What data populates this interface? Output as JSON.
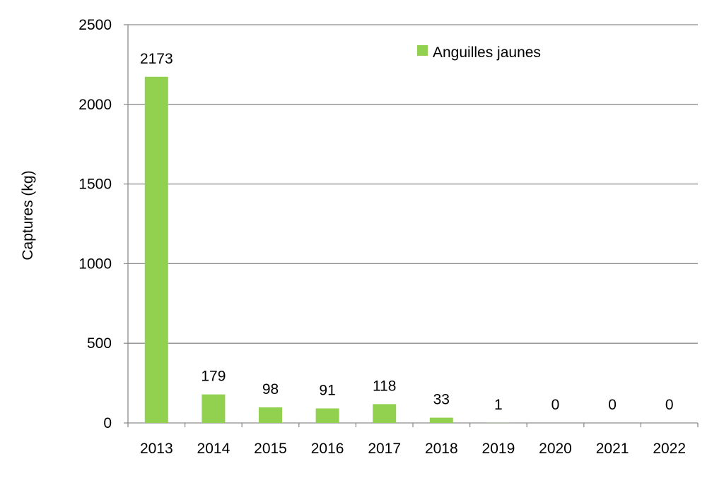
{
  "chart_data": {
    "type": "bar",
    "categories": [
      "2013",
      "2014",
      "2015",
      "2016",
      "2017",
      "2018",
      "2019",
      "2020",
      "2021",
      "2022"
    ],
    "series": [
      {
        "name": "Anguilles jaunes",
        "values": [
          2173,
          179,
          98,
          91,
          118,
          33,
          1,
          0,
          0,
          0
        ],
        "color": "#92d050"
      }
    ],
    "data_labels": [
      "2173",
      "179",
      "98",
      "91",
      "118",
      "33",
      "1",
      "0",
      "0",
      "0"
    ],
    "ylabel": "Captures (kg)",
    "xlabel": "",
    "ylim": [
      0,
      2500
    ],
    "yticks": [
      0,
      500,
      1000,
      1500,
      2000,
      2500
    ],
    "grid": true,
    "legend_position": "top-right",
    "gridline_color": "#8c8c8c",
    "axis_color": "#8c8c8c"
  }
}
